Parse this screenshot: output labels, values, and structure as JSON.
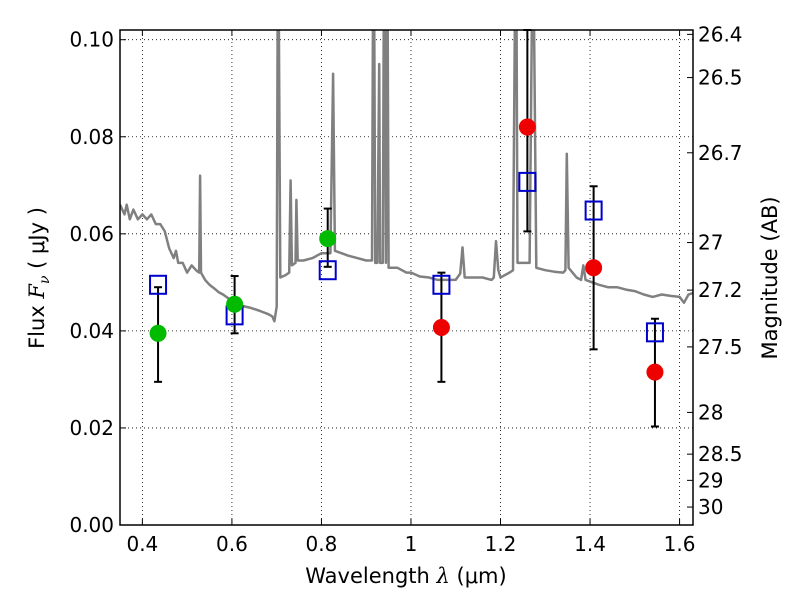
{
  "chart_data": {
    "type": "scatter",
    "xlabel": {
      "prefix": "Wavelength  ",
      "symbol": "λ",
      "unit": " (μm)"
    },
    "ylabel": {
      "prefix": "Flux  ",
      "symbol": "F",
      "subscript": "ν",
      "unit": "  ( μJy )"
    },
    "ylabel_right": "Magnitude (AB)",
    "xlim": [
      0.35,
      1.63
    ],
    "ylim": [
      0.0,
      0.102
    ],
    "grid": true,
    "x_ticks": [
      0.4,
      0.6,
      0.8,
      1.0,
      1.2,
      1.4,
      1.6
    ],
    "x_tick_labels": [
      "0.4",
      "0.6",
      "0.8",
      "1",
      "1.2",
      "1.4",
      "1.6"
    ],
    "y_ticks": [
      0.0,
      0.02,
      0.04,
      0.06,
      0.08,
      0.1
    ],
    "y_tick_labels": [
      "0.00",
      "0.02",
      "0.04",
      "0.06",
      "0.08",
      "0.10"
    ],
    "right_ticks": [
      {
        "label": "26.4",
        "flux": 0.1011
      },
      {
        "label": "26.5",
        "flux": 0.0922
      },
      {
        "label": "26.7",
        "flux": 0.0767
      },
      {
        "label": "27",
        "flux": 0.0582
      },
      {
        "label": "27.2",
        "flux": 0.0484
      },
      {
        "label": "27.5",
        "flux": 0.0367
      },
      {
        "label": "28",
        "flux": 0.0232
      },
      {
        "label": "28.5",
        "flux": 0.0146
      },
      {
        "label": "29",
        "flux": 0.0092
      },
      {
        "label": "30",
        "flux": 0.0037
      }
    ],
    "colors": {
      "green": "#00bb00",
      "red": "#ee0000",
      "model_box": "#0000cc",
      "sed": "#808080",
      "errorbar": "#000000"
    },
    "series": [
      {
        "marker": "circle",
        "color": "green",
        "points": [
          {
            "x": 0.435,
            "y": 0.0395,
            "err_lo": 0.0295,
            "err_hi": 0.049
          },
          {
            "x": 0.606,
            "y": 0.0455,
            "err_lo": 0.0395,
            "err_hi": 0.0513
          },
          {
            "x": 0.814,
            "y": 0.059,
            "err_lo": 0.0532,
            "err_hi": 0.0652
          }
        ]
      },
      {
        "marker": "circle",
        "color": "red",
        "points": [
          {
            "x": 1.068,
            "y": 0.0407,
            "err_lo": 0.0295,
            "err_hi": 0.052
          },
          {
            "x": 1.26,
            "y": 0.082,
            "err_lo": 0.0605,
            "err_hi": 0.102
          },
          {
            "x": 1.408,
            "y": 0.053,
            "err_lo": 0.0362,
            "err_hi": 0.0698
          },
          {
            "x": 1.545,
            "y": 0.0315,
            "err_lo": 0.0203,
            "err_hi": 0.0425
          }
        ]
      },
      {
        "marker": "square-open",
        "color": "model_box",
        "points": [
          {
            "x": 0.435,
            "y": 0.0495
          },
          {
            "x": 0.606,
            "y": 0.0432
          },
          {
            "x": 0.814,
            "y": 0.0525
          },
          {
            "x": 1.068,
            "y": 0.0495
          },
          {
            "x": 1.26,
            "y": 0.0707
          },
          {
            "x": 1.408,
            "y": 0.0648
          },
          {
            "x": 1.545,
            "y": 0.0397
          }
        ]
      },
      {
        "line": "sed",
        "color": "sed",
        "points": [
          [
            0.35,
            0.066
          ],
          [
            0.36,
            0.064
          ],
          [
            0.365,
            0.066
          ],
          [
            0.372,
            0.063
          ],
          [
            0.38,
            0.065
          ],
          [
            0.39,
            0.063
          ],
          [
            0.4,
            0.064
          ],
          [
            0.41,
            0.063
          ],
          [
            0.42,
            0.064
          ],
          [
            0.43,
            0.062
          ],
          [
            0.44,
            0.062
          ],
          [
            0.45,
            0.0605
          ],
          [
            0.46,
            0.057
          ],
          [
            0.47,
            0.055
          ],
          [
            0.475,
            0.0565
          ],
          [
            0.48,
            0.054
          ],
          [
            0.49,
            0.054
          ],
          [
            0.5,
            0.052
          ],
          [
            0.51,
            0.0535
          ],
          [
            0.52,
            0.0525
          ],
          [
            0.527,
            0.052
          ],
          [
            0.529,
            0.072
          ],
          [
            0.531,
            0.052
          ],
          [
            0.54,
            0.0505
          ],
          [
            0.55,
            0.0495
          ],
          [
            0.56,
            0.0488
          ],
          [
            0.57,
            0.048
          ],
          [
            0.58,
            0.0475
          ],
          [
            0.6,
            0.0462
          ],
          [
            0.62,
            0.0452
          ],
          [
            0.64,
            0.0448
          ],
          [
            0.66,
            0.0442
          ],
          [
            0.68,
            0.0435
          ],
          [
            0.69,
            0.043
          ],
          [
            0.695,
            0.042
          ],
          [
            0.7,
            0.045
          ],
          [
            0.702,
            0.102
          ],
          [
            0.705,
            0.102
          ],
          [
            0.708,
            0.051
          ],
          [
            0.72,
            0.0515
          ],
          [
            0.728,
            0.052
          ],
          [
            0.731,
            0.071
          ],
          [
            0.734,
            0.0535
          ],
          [
            0.742,
            0.054
          ],
          [
            0.744,
            0.067
          ],
          [
            0.747,
            0.0545
          ],
          [
            0.76,
            0.0545
          ],
          [
            0.78,
            0.055
          ],
          [
            0.8,
            0.056
          ],
          [
            0.82,
            0.056
          ],
          [
            0.826,
            0.093
          ],
          [
            0.83,
            0.0565
          ],
          [
            0.86,
            0.0555
          ],
          [
            0.88,
            0.055
          ],
          [
            0.9,
            0.0545
          ],
          [
            0.913,
            0.0545
          ],
          [
            0.915,
            0.102
          ],
          [
            0.918,
            0.102
          ],
          [
            0.92,
            0.054
          ],
          [
            0.925,
            0.054
          ],
          [
            0.929,
            0.095
          ],
          [
            0.931,
            0.054
          ],
          [
            0.937,
            0.054
          ],
          [
            0.939,
            0.102
          ],
          [
            0.942,
            0.102
          ],
          [
            0.944,
            0.054
          ],
          [
            0.946,
            0.102
          ],
          [
            0.948,
            0.102
          ],
          [
            0.95,
            0.053
          ],
          [
            0.97,
            0.053
          ],
          [
            0.99,
            0.052
          ],
          [
            1.0,
            0.052
          ],
          [
            1.02,
            0.0512
          ],
          [
            1.04,
            0.051
          ],
          [
            1.06,
            0.0505
          ],
          [
            1.1,
            0.0505
          ],
          [
            1.11,
            0.0518
          ],
          [
            1.115,
            0.0572
          ],
          [
            1.12,
            0.051
          ],
          [
            1.16,
            0.051
          ],
          [
            1.18,
            0.0505
          ],
          [
            1.185,
            0.051
          ],
          [
            1.19,
            0.0585
          ],
          [
            1.195,
            0.0525
          ],
          [
            1.2,
            0.051
          ],
          [
            1.22,
            0.052
          ],
          [
            1.228,
            0.0525
          ],
          [
            1.232,
            0.102
          ],
          [
            1.236,
            0.102
          ],
          [
            1.238,
            0.054
          ],
          [
            1.25,
            0.054
          ],
          [
            1.265,
            0.054
          ],
          [
            1.27,
            0.102
          ],
          [
            1.275,
            0.102
          ],
          [
            1.28,
            0.053
          ],
          [
            1.3,
            0.0525
          ],
          [
            1.32,
            0.0522
          ],
          [
            1.34,
            0.052
          ],
          [
            1.345,
            0.0525
          ],
          [
            1.348,
            0.0765
          ],
          [
            1.352,
            0.053
          ],
          [
            1.37,
            0.051
          ],
          [
            1.38,
            0.0505
          ],
          [
            1.385,
            0.0535
          ],
          [
            1.39,
            0.0505
          ],
          [
            1.42,
            0.0495
          ],
          [
            1.44,
            0.049
          ],
          [
            1.46,
            0.049
          ],
          [
            1.48,
            0.0485
          ],
          [
            1.5,
            0.0482
          ],
          [
            1.52,
            0.0475
          ],
          [
            1.54,
            0.047
          ],
          [
            1.56,
            0.0475
          ],
          [
            1.58,
            0.0472
          ],
          [
            1.6,
            0.047
          ],
          [
            1.61,
            0.0458
          ],
          [
            1.62,
            0.0475
          ],
          [
            1.63,
            0.0478
          ]
        ]
      }
    ]
  }
}
